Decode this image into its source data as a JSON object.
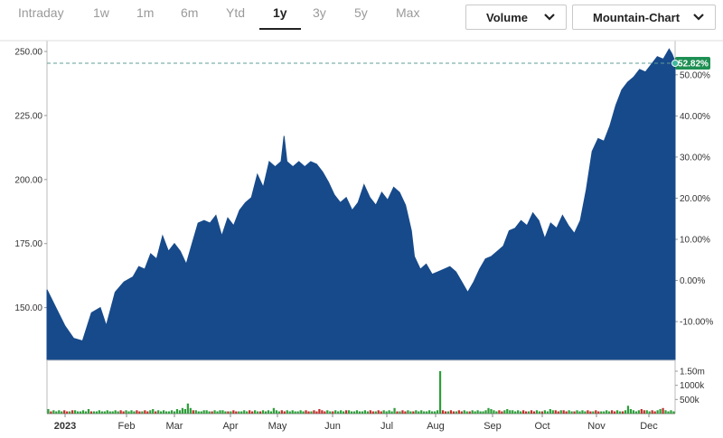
{
  "range_tabs": [
    "Intraday",
    "1w",
    "1m",
    "6m",
    "Ytd",
    "1y",
    "3y",
    "5y",
    "Max"
  ],
  "active_tab": "1y",
  "volume_dropdown": {
    "label": "Volume"
  },
  "chart_type_dropdown": {
    "label": "Mountain-Chart"
  },
  "colors": {
    "area": "#174a8b",
    "reference_line": "#5f9e9a",
    "badge": "#1e8f53",
    "vol_up": "#2e9e3a",
    "vol_down": "#c0302a"
  },
  "chart_data": {
    "type": "area",
    "price_axis": {
      "ticks": [
        "250.00",
        "225.00",
        "200.00",
        "175.00",
        "150.00"
      ],
      "values": [
        250,
        225,
        200,
        175,
        150
      ]
    },
    "percent_axis": {
      "ticks": [
        "50.00%",
        "40.00%",
        "30.00%",
        "20.00%",
        "10.00%",
        "0.00%",
        "-10.00%"
      ],
      "values": [
        50,
        40,
        30,
        20,
        10,
        0,
        -10
      ]
    },
    "volume_axis": {
      "ticks": [
        "1.50m",
        "1000k",
        "500k"
      ],
      "values": [
        1500000,
        1000000,
        500000
      ]
    },
    "x_labels": [
      "2023",
      "Feb",
      "Mar",
      "Apr",
      "May",
      "Jun",
      "Jul",
      "Aug",
      "Sep",
      "Oct",
      "Nov",
      "Dec"
    ],
    "last_change_badge": "52.82%",
    "last_price": 245.4,
    "base_price": 160.6,
    "price_series": [
      [
        0,
        157
      ],
      [
        3,
        150
      ],
      [
        6,
        143
      ],
      [
        9,
        138
      ],
      [
        12,
        137
      ],
      [
        15,
        148
      ],
      [
        18,
        150
      ],
      [
        20,
        143
      ],
      [
        23,
        156
      ],
      [
        26,
        160
      ],
      [
        29,
        162
      ],
      [
        31,
        166
      ],
      [
        33,
        165
      ],
      [
        35,
        171
      ],
      [
        37,
        169
      ],
      [
        39,
        178
      ],
      [
        41,
        172
      ],
      [
        43,
        175
      ],
      [
        45,
        172
      ],
      [
        47,
        167
      ],
      [
        49,
        175
      ],
      [
        51,
        183
      ],
      [
        53,
        184
      ],
      [
        55,
        183
      ],
      [
        57,
        186
      ],
      [
        59,
        178
      ],
      [
        61,
        185
      ],
      [
        63,
        182
      ],
      [
        65,
        188
      ],
      [
        67,
        191
      ],
      [
        69,
        193
      ],
      [
        71,
        202
      ],
      [
        73,
        197
      ],
      [
        75,
        207
      ],
      [
        77,
        205
      ],
      [
        79,
        207
      ],
      [
        80,
        217
      ],
      [
        81,
        207
      ],
      [
        83,
        205
      ],
      [
        85,
        207
      ],
      [
        87,
        205
      ],
      [
        89,
        207
      ],
      [
        91,
        206
      ],
      [
        93,
        203
      ],
      [
        95,
        199
      ],
      [
        97,
        194
      ],
      [
        99,
        191
      ],
      [
        101,
        193
      ],
      [
        103,
        188
      ],
      [
        105,
        191
      ],
      [
        107,
        198
      ],
      [
        109,
        193
      ],
      [
        111,
        190
      ],
      [
        113,
        195
      ],
      [
        115,
        192
      ],
      [
        117,
        197
      ],
      [
        119,
        195
      ],
      [
        121,
        190
      ],
      [
        123,
        180
      ],
      [
        124,
        170
      ],
      [
        126,
        165
      ],
      [
        128,
        167
      ],
      [
        130,
        163
      ],
      [
        132,
        164
      ],
      [
        134,
        165
      ],
      [
        136,
        166
      ],
      [
        138,
        164
      ],
      [
        140,
        160
      ],
      [
        142,
        156
      ],
      [
        144,
        160
      ],
      [
        146,
        165
      ],
      [
        148,
        169
      ],
      [
        150,
        170
      ],
      [
        152,
        172
      ],
      [
        154,
        174
      ],
      [
        156,
        180
      ],
      [
        158,
        181
      ],
      [
        160,
        184
      ],
      [
        162,
        182
      ],
      [
        164,
        187
      ],
      [
        166,
        184
      ],
      [
        168,
        177
      ],
      [
        170,
        183
      ],
      [
        172,
        181
      ],
      [
        174,
        186
      ],
      [
        176,
        182
      ],
      [
        178,
        179
      ],
      [
        180,
        184
      ],
      [
        182,
        196
      ],
      [
        184,
        211
      ],
      [
        186,
        216
      ],
      [
        188,
        215
      ],
      [
        190,
        221
      ],
      [
        192,
        229
      ],
      [
        194,
        235
      ],
      [
        196,
        238
      ],
      [
        198,
        240
      ],
      [
        200,
        243
      ],
      [
        202,
        242
      ],
      [
        204,
        245
      ],
      [
        206,
        248
      ],
      [
        208,
        247
      ],
      [
        210,
        251
      ],
      [
        211,
        249
      ],
      [
        212,
        246
      ]
    ],
    "volume_series": [
      4,
      2,
      3,
      2,
      3,
      2,
      3,
      2,
      2,
      3,
      3,
      2,
      2,
      3,
      2,
      4,
      2,
      2,
      2,
      3,
      2,
      2,
      3,
      2,
      2,
      3,
      2,
      3,
      2,
      3,
      2,
      3,
      2,
      3,
      2,
      2,
      3,
      2,
      3,
      4,
      2,
      3,
      2,
      3,
      2,
      2,
      3,
      2,
      4,
      3,
      5,
      4,
      9,
      5,
      3,
      3,
      2,
      2,
      3,
      3,
      2,
      2,
      3,
      2,
      3,
      3,
      2,
      2,
      2,
      3,
      2,
      2,
      2,
      3,
      2,
      3,
      2,
      3,
      2,
      2,
      3,
      2,
      3,
      2,
      5,
      3,
      2,
      3,
      2,
      3,
      2,
      3,
      2,
      2,
      3,
      2,
      3,
      2,
      2,
      3,
      2,
      4,
      3,
      2,
      3,
      2,
      2,
      3,
      2,
      3,
      2,
      3,
      3,
      2,
      2,
      3,
      2,
      2,
      3,
      2,
      3,
      2,
      2,
      3,
      2,
      3,
      2,
      3,
      2,
      5,
      2,
      2,
      3,
      2,
      3,
      2,
      2,
      3,
      2,
      3,
      2,
      2,
      3,
      2,
      2,
      3,
      38,
      3,
      2,
      2,
      3,
      2,
      2,
      3,
      2,
      3,
      2,
      2,
      3,
      2,
      3,
      2,
      2,
      3,
      5,
      4,
      3,
      2,
      3,
      2,
      3,
      4,
      3,
      3,
      2,
      3,
      2,
      3,
      2,
      2,
      3,
      2,
      3,
      2,
      2,
      3,
      2,
      4,
      3,
      3,
      2,
      3,
      3,
      2,
      3,
      2,
      2,
      3,
      2,
      3,
      2,
      3,
      2,
      2,
      3,
      2,
      2,
      2,
      3,
      2,
      3,
      2,
      3,
      2,
      2,
      3,
      7,
      4,
      3,
      2,
      3,
      4,
      3,
      3,
      2,
      3,
      2,
      3,
      4,
      5,
      3,
      2,
      3,
      2
    ]
  }
}
